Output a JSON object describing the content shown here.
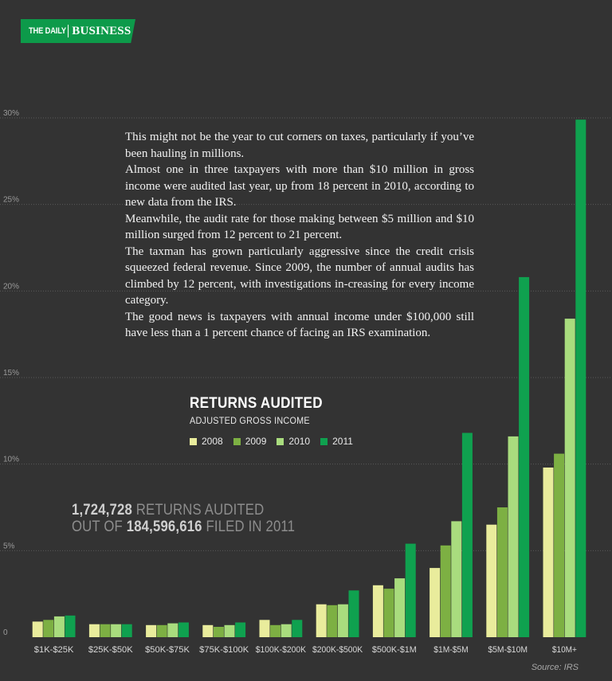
{
  "brand": {
    "daily": "THE DAILY",
    "business": "BUSINESS"
  },
  "article": {
    "paragraphs": [
      "This might not be the year to cut corners on taxes, particularly if you’ve been hauling in millions.",
      "Almost one in three taxpayers with more than $10 million in gross income were audited last year, up from 18 percent in 2010, according to new data from the IRS.",
      "Meanwhile, the audit rate for those making between $5 million and $10 million surged from 12 percent to 21 percent.",
      "The taxman has grown particularly aggressive since the credit crisis squeezed federal revenue. Since 2009, the number of annual audits has climbed by 12 percent, with investigations in-creasing for every income category.",
      "The good news is taxpayers with annual income under $100,000 still have less than a 1 percent chance of facing an IRS examination."
    ]
  },
  "stat": {
    "audited_number": "1,724,728",
    "audited_text": " RETURNS AUDITED",
    "out_of_text": "OUT OF ",
    "filed_number": "184,596,616",
    "filed_text": " FILED IN 2011"
  },
  "source": "Source: IRS",
  "colors": {
    "background": "#333333",
    "brand": "#0d9a4a",
    "y2008": "#e9ec9c",
    "y2009": "#7db043",
    "y2010": "#a9dc7e",
    "y2011": "#0fa14f"
  },
  "chart_data": {
    "type": "bar",
    "title": "RETURNS AUDITED",
    "subtitle": "ADJUSTED GROSS INCOME",
    "categories": [
      "$1K-$25K",
      "$25K-$50K",
      "$50K-$75K",
      "$75K-$100K",
      "$100K-$200K",
      "$200K-$500K",
      "$500K-$1M",
      "$1M-$5M",
      "$5M-$10M",
      "$10M+"
    ],
    "series": [
      {
        "name": "2008",
        "color": "#e9ec9c",
        "values": [
          0.9,
          0.75,
          0.7,
          0.7,
          1.0,
          1.9,
          3.0,
          4.0,
          6.5,
          9.8
        ]
      },
      {
        "name": "2009",
        "color": "#7db043",
        "values": [
          1.0,
          0.75,
          0.7,
          0.6,
          0.7,
          1.85,
          2.8,
          5.3,
          7.5,
          10.6
        ]
      },
      {
        "name": "2010",
        "color": "#a9dc7e",
        "values": [
          1.2,
          0.75,
          0.8,
          0.7,
          0.75,
          1.9,
          3.4,
          6.7,
          11.6,
          18.4
        ]
      },
      {
        "name": "2011",
        "color": "#0fa14f",
        "values": [
          1.25,
          0.75,
          0.85,
          0.85,
          1.0,
          2.7,
          5.4,
          11.8,
          20.8,
          29.9
        ]
      }
    ],
    "yticks": [
      "0",
      "5%",
      "10%",
      "15%",
      "20%",
      "25%",
      "30%"
    ],
    "ytick_values": [
      0,
      5,
      10,
      15,
      20,
      25,
      30
    ],
    "ylim": [
      0,
      30
    ],
    "grid": "horizontal-dotted",
    "legend": "center"
  }
}
